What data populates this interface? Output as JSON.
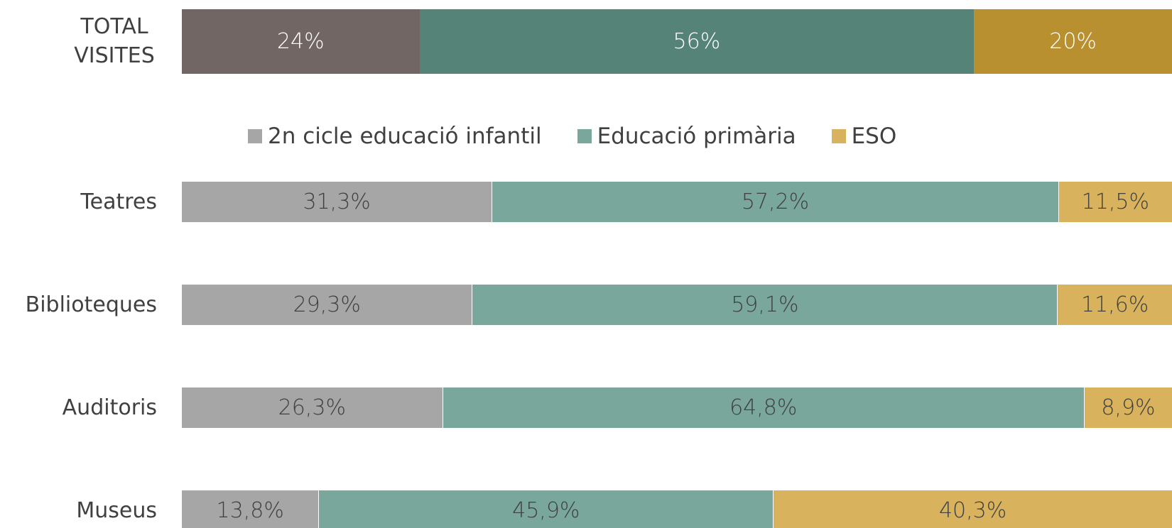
{
  "chart_data": [
    {
      "type": "stacked-bar",
      "categories": [
        "TOTAL VISITES"
      ],
      "xlim": [
        0,
        100
      ],
      "series": [
        {
          "color": "#716664",
          "values": [
            24
          ],
          "value_labels": [
            "24%"
          ]
        },
        {
          "color": "#558378",
          "values": [
            56
          ],
          "value_labels": [
            "56%"
          ]
        },
        {
          "color": "#b8902f",
          "values": [
            20
          ],
          "value_labels": [
            "20%"
          ]
        }
      ]
    },
    {
      "type": "stacked-bar",
      "categories": [
        "Teatres",
        "Biblioteques",
        "Auditoris",
        "Museus"
      ],
      "xlim": [
        0,
        100
      ],
      "legend": "top",
      "series": [
        {
          "name": "2n cicle educació infantil",
          "color": "#a6a6a6",
          "values": [
            31.3,
            29.3,
            26.3,
            13.8
          ],
          "value_labels": [
            "31,3%",
            "29,3%",
            "26,3%",
            "13,8%"
          ]
        },
        {
          "name": "Educació primària",
          "color": "#7aa79b",
          "values": [
            57.2,
            59.1,
            64.8,
            45.9
          ],
          "value_labels": [
            "57,2%",
            "59,1%",
            "64,8%",
            "45,9%"
          ]
        },
        {
          "name": "ESO",
          "color": "#d8b25c",
          "values": [
            11.5,
            11.6,
            8.9,
            40.3
          ],
          "value_labels": [
            "11,5%",
            "11,6%",
            "8,9%",
            "40,3%"
          ]
        }
      ]
    }
  ]
}
